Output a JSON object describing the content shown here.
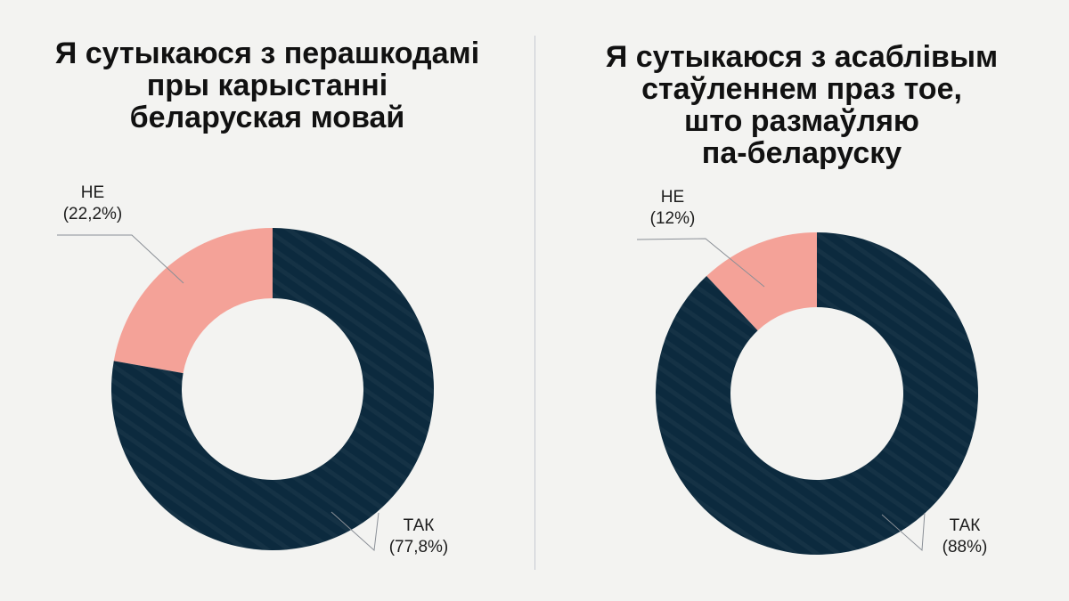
{
  "colors": {
    "yes": "#0c2a3e",
    "no": "#f4a298",
    "background": "#f3f3f1"
  },
  "chart_data": [
    {
      "type": "pie",
      "title": "Я сутыкаюся з перашкодамі\nпры карыстанні\nбеларуская мовай",
      "slices": [
        {
          "label": "НЕ",
          "value": 22.2,
          "value_text": "(22,2%)",
          "color": "#f4a298"
        },
        {
          "label": "ТАК",
          "value": 77.8,
          "value_text": "(77,8%)",
          "color": "#0c2a3e"
        }
      ]
    },
    {
      "type": "pie",
      "title": "Я сутыкаюся з асаблівым\nстаўленнем праз тое,\nшто размаўляю\nпа-беларуску",
      "slices": [
        {
          "label": "НЕ",
          "value": 12,
          "value_text": "(12%)",
          "color": "#f4a298"
        },
        {
          "label": "ТАК",
          "value": 88,
          "value_text": "(88%)",
          "color": "#0c2a3e"
        }
      ]
    }
  ]
}
